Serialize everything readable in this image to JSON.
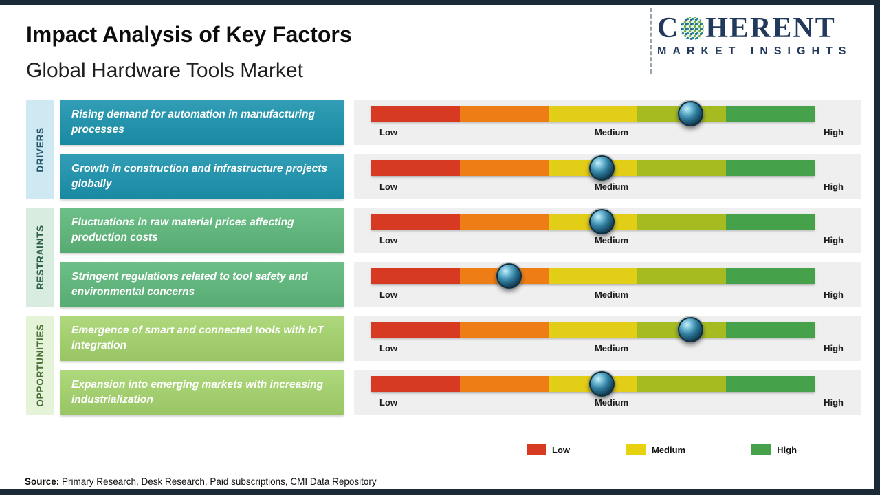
{
  "header": {
    "title": "Impact Analysis of Key Factors",
    "subtitle": "Global Hardware Tools Market"
  },
  "logo": {
    "brand_prefix": "C",
    "brand_suffix": "HERENT",
    "tagline": "MARKET INSIGHTS",
    "brand_color": "#21395a"
  },
  "scale": {
    "low": "Low",
    "medium": "Medium",
    "high": "High"
  },
  "bar": {
    "panel_color": "#efefef",
    "segment_colors": [
      "#d63a22",
      "#ee7d15",
      "#e2cd17",
      "#a6bb1f",
      "#46a24a"
    ]
  },
  "groups": [
    {
      "label": "DRIVERS",
      "sidebar_color": "#cfe9f3",
      "box_color": "#1b93ae",
      "rows": [
        {
          "text": "Rising demand for automation in manufacturing processes",
          "marker_pct": 72,
          "level": "Medium-High"
        },
        {
          "text": "Growth in construction and infrastructure projects globally",
          "marker_pct": 52,
          "level": "Medium"
        }
      ]
    },
    {
      "label": "RESTRAINTS",
      "sidebar_color": "#d8ecdf",
      "box_color": "#5db87b",
      "rows": [
        {
          "text": "Fluctuations in raw material prices affecting production costs",
          "marker_pct": 52,
          "level": "Medium"
        },
        {
          "text": "Stringent regulations related to tool safety and environmental concerns",
          "marker_pct": 31,
          "level": "Low-Medium"
        }
      ]
    },
    {
      "label": "OPPORTUNITIES",
      "sidebar_color": "#e5f3d9",
      "box_color": "#a5d46d",
      "rows": [
        {
          "text": "Emergence of smart and connected tools with IoT integration",
          "marker_pct": 72,
          "level": "Medium-High"
        },
        {
          "text": "Expansion into emerging markets with increasing industrialization",
          "marker_pct": 52,
          "level": "Medium"
        }
      ]
    }
  ],
  "legend": [
    {
      "label": "Low",
      "color": "#d63a22"
    },
    {
      "label": "Medium",
      "color": "#e8d20e"
    },
    {
      "label": "High",
      "color": "#46a24a"
    }
  ],
  "source": {
    "label": "Source:",
    "text": " Primary Research, Desk Research, Paid subscriptions, CMI Data Repository"
  },
  "chart_data": {
    "type": "bar",
    "title": "Impact Analysis of Key Factors",
    "subtitle": "Global Hardware Tools Market",
    "scale": [
      "Low",
      "Medium",
      "High"
    ],
    "legend": [
      "Low",
      "Medium",
      "High"
    ],
    "series": [
      {
        "category": "Drivers",
        "factor": "Rising demand for automation in manufacturing processes",
        "impact_level": "Medium-High",
        "position_pct": 72
      },
      {
        "category": "Drivers",
        "factor": "Growth in construction and infrastructure projects globally",
        "impact_level": "Medium",
        "position_pct": 52
      },
      {
        "category": "Restraints",
        "factor": "Fluctuations in raw material prices affecting production costs",
        "impact_level": "Medium",
        "position_pct": 52
      },
      {
        "category": "Restraints",
        "factor": "Stringent regulations related to tool safety and environmental concerns",
        "impact_level": "Low-Medium",
        "position_pct": 31
      },
      {
        "category": "Opportunities",
        "factor": "Emergence of smart and connected tools with IoT integration",
        "impact_level": "Medium-High",
        "position_pct": 72
      },
      {
        "category": "Opportunities",
        "factor": "Expansion into emerging markets with increasing industrialization",
        "impact_level": "Medium",
        "position_pct": 52
      }
    ],
    "source": "Primary Research, Desk Research, Paid subscriptions, CMI Data Repository"
  }
}
